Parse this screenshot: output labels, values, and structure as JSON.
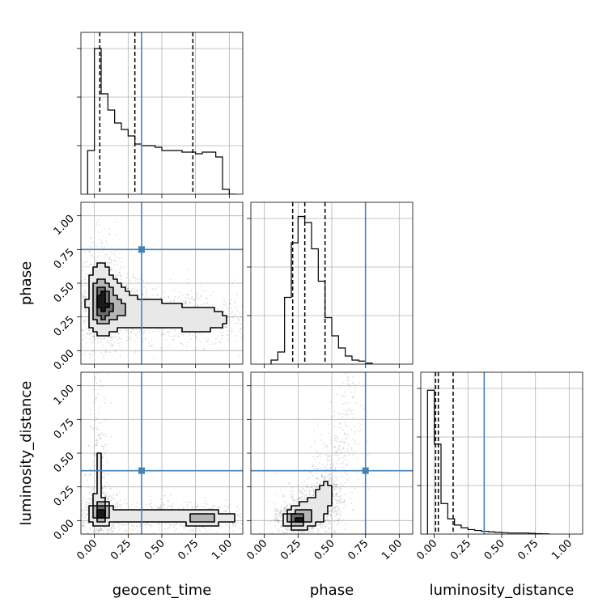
{
  "chart_data": {
    "type": "corner",
    "parameters": [
      "geocent_time",
      "phase",
      "luminosity_distance"
    ],
    "tick_labels": [
      "0.00",
      "0.25",
      "0.50",
      "0.75",
      "1.00"
    ],
    "axis_range": [
      -0.1,
      1.1
    ],
    "truth_values": {
      "geocent_time": 0.35,
      "phase": 0.75,
      "luminosity_distance": 0.37
    },
    "truth_color": "#4682b4",
    "quantiles": {
      "geocent_time": [
        0.04,
        0.3,
        0.73
      ],
      "phase": [
        0.21,
        0.3,
        0.45
      ],
      "luminosity_distance": [
        0.01,
        0.03,
        0.14
      ]
    },
    "histograms": {
      "geocent_time": {
        "bin_edges": [
          -0.05,
          0.0,
          0.05,
          0.1,
          0.15,
          0.2,
          0.25,
          0.3,
          0.35,
          0.4,
          0.45,
          0.5,
          0.55,
          0.6,
          0.65,
          0.7,
          0.75,
          0.8,
          0.85,
          0.9,
          0.95,
          1.0,
          1.05
        ],
        "counts": [
          0.27,
          0.9,
          0.62,
          0.52,
          0.44,
          0.4,
          0.36,
          0.31,
          0.3,
          0.3,
          0.29,
          0.27,
          0.27,
          0.27,
          0.26,
          0.26,
          0.25,
          0.26,
          0.26,
          0.23,
          0.03,
          0.0
        ]
      },
      "phase": {
        "bin_edges": [
          0.05,
          0.1,
          0.15,
          0.2,
          0.25,
          0.3,
          0.35,
          0.4,
          0.45,
          0.5,
          0.55,
          0.6,
          0.65,
          0.7,
          0.75,
          0.8
        ],
        "counts": [
          0.02,
          0.06,
          0.33,
          0.6,
          0.73,
          0.7,
          0.57,
          0.41,
          0.23,
          0.14,
          0.08,
          0.04,
          0.02,
          0.015,
          0.005
        ]
      },
      "luminosity_distance": {
        "bin_edges": [
          -0.05,
          0.0,
          0.05,
          0.1,
          0.15,
          0.2,
          0.25,
          0.3,
          0.35,
          0.4,
          0.45,
          0.5,
          0.55,
          0.6,
          0.65,
          0.7,
          0.75,
          0.8,
          0.85
        ],
        "counts": [
          1.6,
          1.0,
          0.34,
          0.17,
          0.1,
          0.07,
          0.05,
          0.04,
          0.03,
          0.025,
          0.02,
          0.015,
          0.012,
          0.012,
          0.012,
          0.008,
          0.005,
          0.003
        ]
      }
    },
    "hist_ylim": {
      "geocent_time": [
        0,
        1.0
      ],
      "phase": [
        0,
        0.8
      ],
      "luminosity_distance": [
        0,
        1.8
      ]
    },
    "contour_levels": [
      0.118,
      0.393,
      0.675,
      0.864
    ],
    "density_2d": {
      "phase_vs_geocent_time": {
        "x_param": "geocent_time",
        "y_param": "phase",
        "components": [
          {
            "cx": 0.05,
            "cy": 0.38,
            "sx": 0.05,
            "sy": 0.14,
            "w": 1.0
          },
          {
            "cx": 0.14,
            "cy": 0.33,
            "sx": 0.09,
            "sy": 0.1,
            "w": 0.55
          },
          {
            "cx": 0.4,
            "cy": 0.28,
            "sx": 0.17,
            "sy": 0.07,
            "w": 0.4
          },
          {
            "cx": 0.78,
            "cy": 0.23,
            "sx": 0.14,
            "sy": 0.06,
            "w": 0.42
          }
        ]
      },
      "luminosity_distance_vs_geocent_time": {
        "x_param": "geocent_time",
        "y_param": "luminosity_distance",
        "components": [
          {
            "cx": 0.05,
            "cy": 0.06,
            "sx": 0.04,
            "sy": 0.05,
            "w": 1.0
          },
          {
            "cx": 0.03,
            "cy": 0.3,
            "sx": 0.025,
            "sy": 0.22,
            "w": 0.22
          },
          {
            "cx": 0.3,
            "cy": 0.04,
            "sx": 0.18,
            "sy": 0.035,
            "w": 0.45
          },
          {
            "cx": 0.8,
            "cy": 0.02,
            "sx": 0.14,
            "sy": 0.03,
            "w": 0.6
          }
        ]
      },
      "luminosity_distance_vs_phase": {
        "x_param": "phase",
        "y_param": "luminosity_distance",
        "components": [
          {
            "cx": 0.24,
            "cy": 0.01,
            "sx": 0.05,
            "sy": 0.035,
            "w": 1.0
          },
          {
            "cx": 0.33,
            "cy": 0.06,
            "sx": 0.07,
            "sy": 0.06,
            "w": 0.45
          },
          {
            "cx": 0.44,
            "cy": 0.18,
            "sx": 0.05,
            "sy": 0.08,
            "w": 0.25
          },
          {
            "cx": 0.52,
            "cy": 0.4,
            "sx": 0.04,
            "sy": 0.12,
            "w": 0.1
          },
          {
            "cx": 0.63,
            "cy": 0.8,
            "sx": 0.04,
            "sy": 0.15,
            "w": 0.06
          }
        ]
      }
    },
    "grid": true
  }
}
